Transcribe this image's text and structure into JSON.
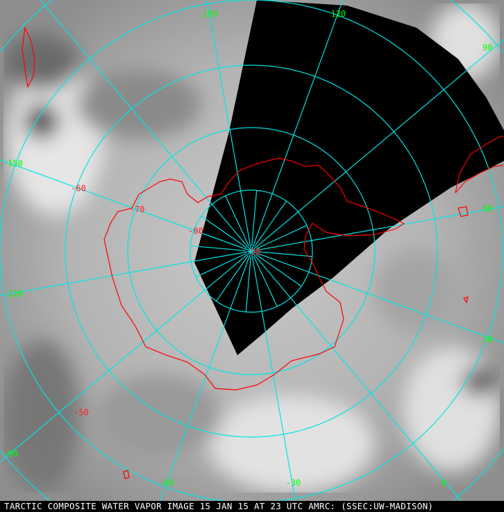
{
  "caption": "TARCTIC COMPOSITE WATER VAPOR IMAGE 15 JAN 15 AT 23 UTC AMRC: (SSEC:UW-MADISON)",
  "projection": "south polar stereographic",
  "colors": {
    "grid": "#00e5e5",
    "coastline": "#ff0000",
    "longitude_labels": "#00ff00",
    "latitude_labels": "#ff2020",
    "no_data": "#000000"
  },
  "latitude_labels": [
    "-90",
    "-80",
    "-70",
    "-60",
    "-50"
  ],
  "longitude_labels": [
    {
      "lon": 0,
      "text": "0"
    },
    {
      "lon": 30,
      "text": "30"
    },
    {
      "lon": 60,
      "text": "60"
    },
    {
      "lon": 90,
      "text": "90"
    },
    {
      "lon": 120,
      "text": "120"
    },
    {
      "lon": 150,
      "text": "150"
    },
    {
      "lon": -150,
      "text": "-150"
    },
    {
      "lon": -120,
      "text": "-120"
    },
    {
      "lon": -90,
      "text": "-90"
    },
    {
      "lon": -60,
      "text": "-60"
    },
    {
      "lon": -30,
      "text": "-30"
    }
  ]
}
